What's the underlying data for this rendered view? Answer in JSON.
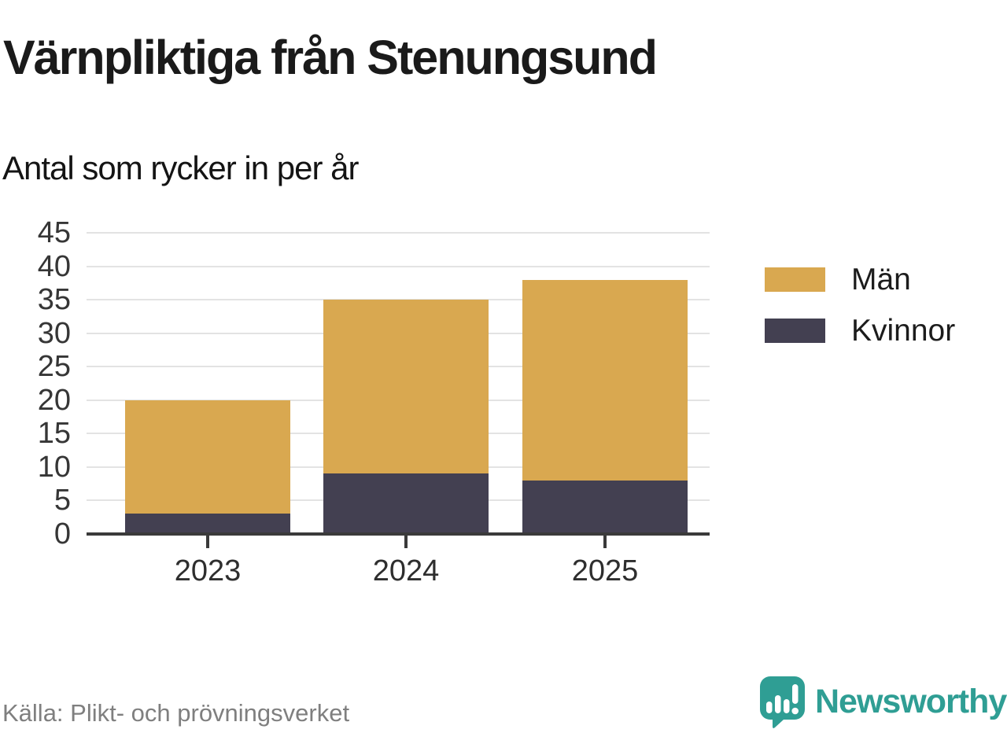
{
  "title": "Värnpliktiga från Stenungsund",
  "subtitle": "Antal som rycker in per år",
  "source": "Källa: Plikt- och prövningsverket",
  "brand": {
    "name": "Newsworthy",
    "color": "#2f9e94",
    "icon": "bar-chart-speech-bubble"
  },
  "chart_data": {
    "type": "bar",
    "stacked": true,
    "title": "Värnpliktiga från Stenungsund",
    "subtitle": "Antal som rycker in per år",
    "categories": [
      "2023",
      "2024",
      "2025"
    ],
    "series": [
      {
        "name": "Män",
        "color": "#d9a850",
        "values": [
          17,
          26,
          30
        ]
      },
      {
        "name": "Kvinnor",
        "color": "#434051",
        "values": [
          3,
          9,
          8
        ]
      }
    ],
    "stack_order_bottom_to_top": [
      "Kvinnor",
      "Män"
    ],
    "totals": [
      20,
      35,
      38
    ],
    "ylabel": "",
    "xlabel": "",
    "ylim": [
      0,
      45
    ],
    "ytick_step": 5,
    "yticks": [
      0,
      5,
      10,
      15,
      20,
      25,
      30,
      35,
      40,
      45
    ],
    "grid": true,
    "legend_position": "right",
    "colors": {
      "grid": "#e3e3e3",
      "axis": "#3a3a3a",
      "tick_label": "#363636"
    }
  }
}
